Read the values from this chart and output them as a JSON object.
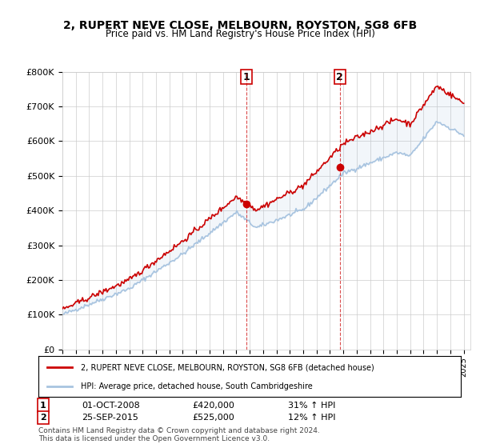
{
  "title": "2, RUPERT NEVE CLOSE, MELBOURN, ROYSTON, SG8 6FB",
  "subtitle": "Price paid vs. HM Land Registry's House Price Index (HPI)",
  "ylabel_ticks": [
    "£0",
    "£100K",
    "£200K",
    "£300K",
    "£400K",
    "£500K",
    "£600K",
    "£700K",
    "£800K"
  ],
  "ylim": [
    0,
    800000
  ],
  "xlim_start": 1995.0,
  "xlim_end": 2025.5,
  "hpi_color": "#a8c4e0",
  "price_color": "#cc0000",
  "marker1_year": 2008.75,
  "marker1_price": 420000,
  "marker1_label": "1",
  "marker1_date": "01-OCT-2008",
  "marker1_pct": "31% ↑ HPI",
  "marker2_year": 2015.73,
  "marker2_price": 525000,
  "marker2_label": "2",
  "marker2_date": "25-SEP-2015",
  "marker2_pct": "12% ↑ HPI",
  "legend_line1": "2, RUPERT NEVE CLOSE, MELBOURN, ROYSTON, SG8 6FB (detached house)",
  "legend_line2": "HPI: Average price, detached house, South Cambridgeshire",
  "footnote": "Contains HM Land Registry data © Crown copyright and database right 2024.\nThis data is licensed under the Open Government Licence v3.0.",
  "background_color": "#ffffff",
  "grid_color": "#cccccc"
}
